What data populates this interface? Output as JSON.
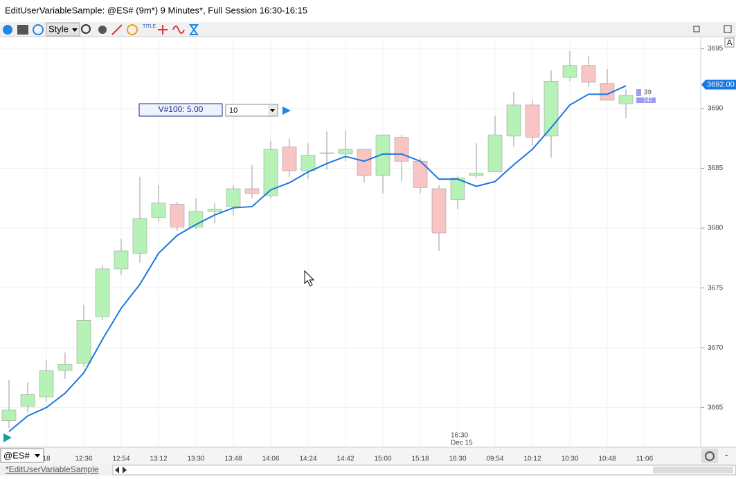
{
  "window": {
    "title": "EditUserVariableSample: @ES# (9m*) 9 Minutes*, Full Session 16:30-16:15"
  },
  "toolbar": {
    "style_button": "Style",
    "icon_text": "TITLE",
    "axis_button": "A"
  },
  "input_panel": {
    "label": "V#100: 5.00",
    "input": "10"
  },
  "chart_data": {
    "type": "candlestick",
    "categories": [
      null,
      null,
      "18",
      null,
      "12:36",
      null,
      "12:54",
      null,
      "13:12",
      null,
      "13:30",
      null,
      "13:48",
      null,
      "14:06",
      null,
      "14:24",
      null,
      "14:42",
      null,
      "15:00",
      null,
      "15:18",
      null,
      "16:30",
      null,
      "09:54",
      null,
      "10:12",
      null,
      "10:30",
      null,
      "10:48",
      null,
      "11:06"
    ],
    "open": [
      3663.9,
      3665.1,
      3665.9,
      3668.1,
      3668.7,
      3672.6,
      3676.6,
      3677.9,
      3680.9,
      3682.0,
      3680.1,
      3681.4,
      3681.8,
      3683.3,
      3682.7,
      3686.8,
      3684.8,
      3686.3,
      3686.2,
      3686.6,
      3684.4,
      3687.6,
      3685.6,
      3683.3,
      3682.4,
      3684.4,
      3684.7,
      3687.7,
      3690.3,
      3687.7,
      3692.6,
      3693.6,
      3692.1,
      3690.4,
      null
    ],
    "high": [
      3667.3,
      3667.1,
      3669.0,
      3669.6,
      3673.6,
      3676.9,
      3679.1,
      3684.3,
      3683.6,
      3682.2,
      3682.5,
      3682.1,
      3683.6,
      3685.3,
      3687.3,
      3687.5,
      3687.1,
      3688.1,
      3688.2,
      3686.6,
      3687.8,
      3687.8,
      3685.9,
      3683.6,
      3684.4,
      3687.1,
      3689.4,
      3691.4,
      3690.7,
      3693.2,
      3694.8,
      3694.4,
      3693.3,
      3691.6,
      null
    ],
    "low": [
      3663.3,
      3664.6,
      3665.5,
      3667.4,
      3668.4,
      3672.3,
      3676.1,
      3677.1,
      3680.5,
      3679.8,
      3679.9,
      3680.4,
      3681.0,
      3682.5,
      3682.5,
      3684.3,
      3684.1,
      3684.9,
      3685.6,
      3683.8,
      3682.9,
      3683.9,
      3682.9,
      3678.1,
      3681.6,
      3684.2,
      3684.7,
      3686.8,
      3686.9,
      3685.9,
      3692.3,
      3691.8,
      3690.7,
      3689.2,
      null
    ],
    "close": [
      3664.8,
      3666.1,
      3668.1,
      3668.6,
      3672.3,
      3676.6,
      3678.1,
      3680.8,
      3682.1,
      3680.1,
      3681.4,
      3681.6,
      3683.3,
      3682.9,
      3686.6,
      3684.8,
      3686.1,
      3686.3,
      3686.6,
      3684.4,
      3687.8,
      3685.6,
      3683.4,
      3679.6,
      3684.2,
      3684.6,
      3687.8,
      3690.3,
      3687.6,
      3692.3,
      3693.6,
      3692.2,
      3690.7,
      3691.1,
      null
    ],
    "up_color": "#b6f2b6",
    "down_color": "#f8c4c4",
    "overlay": {
      "color": "#1877e0",
      "values": [
        3663.0,
        3664.3,
        3665.0,
        3666.2,
        3667.9,
        3670.7,
        3673.3,
        3675.3,
        3677.9,
        3679.4,
        3680.3,
        3681.1,
        3681.7,
        3681.8,
        3683.2,
        3683.8,
        3684.7,
        3685.4,
        3686.0,
        3685.6,
        3686.2,
        3686.2,
        3685.6,
        3684.1,
        3684.1,
        3683.5,
        3683.9,
        3685.3,
        3686.6,
        3688.4,
        3690.3,
        3691.2,
        3691.2,
        3691.9,
        null
      ]
    },
    "price_marker": {
      "value": 3692,
      "label": "3692.00"
    },
    "volume_labels": [
      39,
      147
    ],
    "session_break": {
      "time": "16:30",
      "date": "Dec 15"
    },
    "ylim": [
      3661.8,
      3695.9
    ],
    "yticks": [
      3665,
      3670,
      3675,
      3680,
      3685,
      3690,
      3695
    ],
    "grid": true
  },
  "footer": {
    "symbol": "@ES#",
    "tab": "*EditUserVariableSample",
    "zoom": "-"
  }
}
